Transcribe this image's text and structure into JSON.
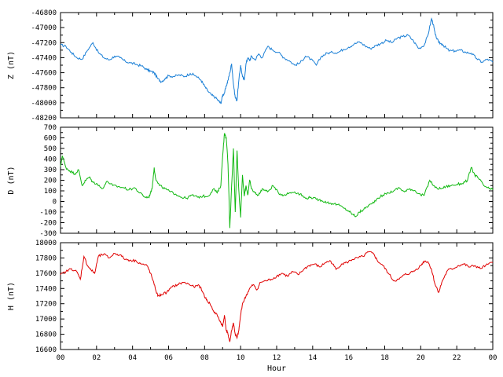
{
  "chart_data": [
    {
      "type": "line",
      "ylabel": "Z (nT)",
      "ylim": [
        -48200,
        -46800
      ],
      "yticks": [
        -46800,
        -47000,
        -47200,
        -47400,
        -47600,
        -47800,
        -48000,
        -48200
      ],
      "xlim": [
        0,
        24
      ],
      "grid": false,
      "series": [
        {
          "color": "#1a7fd6",
          "x": [
            0,
            0.3,
            0.6,
            0.9,
            1.2,
            1.5,
            1.8,
            2.1,
            2.4,
            2.7,
            3.0,
            3.3,
            3.6,
            3.9,
            4.2,
            4.5,
            4.8,
            5.0,
            5.2,
            5.4,
            5.6,
            5.8,
            6.0,
            6.3,
            6.6,
            6.9,
            7.2,
            7.5,
            7.8,
            8.0,
            8.2,
            8.4,
            8.6,
            8.8,
            8.9,
            9.0,
            9.1,
            9.2,
            9.3,
            9.4,
            9.5,
            9.6,
            9.7,
            9.8,
            9.9,
            10.0,
            10.1,
            10.2,
            10.3,
            10.4,
            10.5,
            10.6,
            10.8,
            11.0,
            11.2,
            11.5,
            11.8,
            12.1,
            12.4,
            12.7,
            13.0,
            13.3,
            13.6,
            13.9,
            14.2,
            14.5,
            14.8,
            15.1,
            15.4,
            15.7,
            16.0,
            16.3,
            16.6,
            16.9,
            17.2,
            17.5,
            17.8,
            18.1,
            18.4,
            18.7,
            19.0,
            19.3,
            19.6,
            19.9,
            20.2,
            20.4,
            20.6,
            20.7,
            20.8,
            21.0,
            21.2,
            21.4,
            21.6,
            21.9,
            22.2,
            22.5,
            22.8,
            23.1,
            23.4,
            23.7,
            24.0
          ],
          "values": [
            -47230,
            -47250,
            -47330,
            -47400,
            -47420,
            -47300,
            -47200,
            -47330,
            -47400,
            -47430,
            -47380,
            -47400,
            -47450,
            -47470,
            -47490,
            -47510,
            -47560,
            -47580,
            -47600,
            -47680,
            -47720,
            -47680,
            -47640,
            -47650,
            -47630,
            -47650,
            -47610,
            -47640,
            -47700,
            -47780,
            -47850,
            -47900,
            -47930,
            -47980,
            -48010,
            -47900,
            -47870,
            -47780,
            -47700,
            -47600,
            -47480,
            -47750,
            -47930,
            -47970,
            -47700,
            -47500,
            -47650,
            -47700,
            -47480,
            -47400,
            -47440,
            -47380,
            -47430,
            -47350,
            -47400,
            -47250,
            -47300,
            -47330,
            -47400,
            -47440,
            -47500,
            -47470,
            -47380,
            -47420,
            -47500,
            -47380,
            -47340,
            -47330,
            -47330,
            -47290,
            -47260,
            -47220,
            -47190,
            -47240,
            -47280,
            -47240,
            -47210,
            -47170,
            -47200,
            -47140,
            -47120,
            -47100,
            -47180,
            -47280,
            -47230,
            -47100,
            -46880,
            -46960,
            -47090,
            -47200,
            -47220,
            -47270,
            -47310,
            -47310,
            -47300,
            -47330,
            -47340,
            -47410,
            -47460,
            -47420,
            -47460
          ]
        }
      ]
    },
    {
      "type": "line",
      "ylabel": "D (nT)",
      "ylim": [
        -300,
        700
      ],
      "yticks": [
        700,
        600,
        500,
        400,
        300,
        200,
        100,
        0,
        -100,
        -200,
        -300
      ],
      "xlim": [
        0,
        24
      ],
      "grid": false,
      "series": [
        {
          "color": "#10b810",
          "x": [
            0,
            0.1,
            0.3,
            0.5,
            0.8,
            1.0,
            1.2,
            1.4,
            1.6,
            1.8,
            2.0,
            2.3,
            2.6,
            2.9,
            3.2,
            3.5,
            3.8,
            4.1,
            4.4,
            4.7,
            4.9,
            5.0,
            5.1,
            5.2,
            5.3,
            5.5,
            5.8,
            6.1,
            6.4,
            6.7,
            7.0,
            7.3,
            7.6,
            7.9,
            8.2,
            8.5,
            8.7,
            8.9,
            9.0,
            9.1,
            9.2,
            9.3,
            9.4,
            9.5,
            9.6,
            9.7,
            9.8,
            9.9,
            10.0,
            10.1,
            10.2,
            10.3,
            10.4,
            10.5,
            10.6,
            10.8,
            11.0,
            11.2,
            11.5,
            11.8,
            12.1,
            12.4,
            12.7,
            13.0,
            13.3,
            13.6,
            13.9,
            14.2,
            14.5,
            14.8,
            15.1,
            15.4,
            15.7,
            16.0,
            16.2,
            16.4,
            16.6,
            16.8,
            17.0,
            17.3,
            17.6,
            17.9,
            18.2,
            18.5,
            18.8,
            19.1,
            19.4,
            19.7,
            20.0,
            20.2,
            20.5,
            20.8,
            21.1,
            21.4,
            21.7,
            22.0,
            22.3,
            22.6,
            22.8,
            23.0,
            23.2,
            23.5,
            23.8,
            24.0
          ],
          "values": [
            330,
            430,
            320,
            290,
            260,
            300,
            150,
            200,
            230,
            180,
            170,
            120,
            190,
            150,
            140,
            130,
            110,
            130,
            80,
            40,
            40,
            80,
            140,
            320,
            200,
            150,
            120,
            90,
            70,
            40,
            30,
            60,
            40,
            50,
            50,
            120,
            80,
            150,
            430,
            640,
            600,
            350,
            -250,
            150,
            500,
            -100,
            480,
            100,
            -150,
            250,
            50,
            150,
            60,
            200,
            120,
            80,
            60,
            120,
            90,
            150,
            80,
            60,
            80,
            90,
            70,
            30,
            40,
            20,
            10,
            -10,
            -20,
            -30,
            -60,
            -90,
            -120,
            -140,
            -100,
            -80,
            -50,
            -20,
            30,
            60,
            80,
            100,
            130,
            90,
            120,
            100,
            60,
            60,
            200,
            130,
            120,
            140,
            150,
            160,
            170,
            200,
            320,
            250,
            220,
            150,
            120,
            110
          ]
        }
      ]
    },
    {
      "type": "line",
      "ylabel": "H (nT)",
      "xlabel": "Hour",
      "ylim": [
        16600,
        18000
      ],
      "yticks": [
        18000,
        17800,
        17600,
        17400,
        17200,
        17000,
        16800,
        16600
      ],
      "xlim": [
        0,
        24
      ],
      "xticks": [
        "00",
        "02",
        "04",
        "06",
        "08",
        "10",
        "12",
        "14",
        "16",
        "18",
        "20",
        "22",
        "00"
      ],
      "grid": false,
      "series": [
        {
          "color": "#e00000",
          "x": [
            0,
            0.3,
            0.6,
            0.9,
            1.1,
            1.3,
            1.5,
            1.7,
            1.9,
            2.1,
            2.4,
            2.7,
            3.0,
            3.3,
            3.6,
            3.9,
            4.2,
            4.5,
            4.8,
            5.0,
            5.2,
            5.4,
            5.6,
            5.9,
            6.2,
            6.5,
            6.8,
            7.1,
            7.4,
            7.7,
            7.9,
            8.1,
            8.3,
            8.5,
            8.7,
            8.9,
            9.0,
            9.1,
            9.2,
            9.3,
            9.4,
            9.5,
            9.6,
            9.7,
            9.8,
            9.9,
            10.0,
            10.1,
            10.3,
            10.5,
            10.7,
            10.9,
            11.1,
            11.4,
            11.7,
            12.0,
            12.3,
            12.6,
            12.9,
            13.2,
            13.5,
            13.8,
            14.1,
            14.4,
            14.7,
            15.0,
            15.3,
            15.6,
            15.9,
            16.2,
            16.5,
            16.8,
            17.1,
            17.4,
            17.6,
            17.9,
            18.2,
            18.5,
            18.8,
            19.1,
            19.4,
            19.7,
            20.0,
            20.2,
            20.4,
            20.6,
            20.8,
            21.0,
            21.2,
            21.5,
            21.8,
            22.1,
            22.4,
            22.7,
            23.0,
            23.3,
            23.6,
            24.0
          ],
          "values": [
            17580,
            17620,
            17660,
            17620,
            17520,
            17820,
            17700,
            17640,
            17600,
            17820,
            17850,
            17800,
            17860,
            17840,
            17780,
            17770,
            17760,
            17720,
            17700,
            17600,
            17450,
            17300,
            17320,
            17350,
            17420,
            17450,
            17480,
            17460,
            17420,
            17440,
            17350,
            17250,
            17200,
            17100,
            17050,
            16950,
            16900,
            17050,
            16850,
            16800,
            16700,
            16850,
            16950,
            16800,
            16750,
            16850,
            17050,
            17200,
            17300,
            17400,
            17450,
            17380,
            17480,
            17500,
            17520,
            17560,
            17600,
            17560,
            17620,
            17580,
            17650,
            17700,
            17720,
            17680,
            17740,
            17760,
            17650,
            17720,
            17740,
            17780,
            17800,
            17820,
            17880,
            17850,
            17760,
            17700,
            17600,
            17500,
            17520,
            17580,
            17600,
            17640,
            17700,
            17760,
            17750,
            17650,
            17450,
            17350,
            17500,
            17640,
            17660,
            17700,
            17720,
            17680,
            17700,
            17660,
            17700,
            17740
          ]
        }
      ]
    }
  ]
}
